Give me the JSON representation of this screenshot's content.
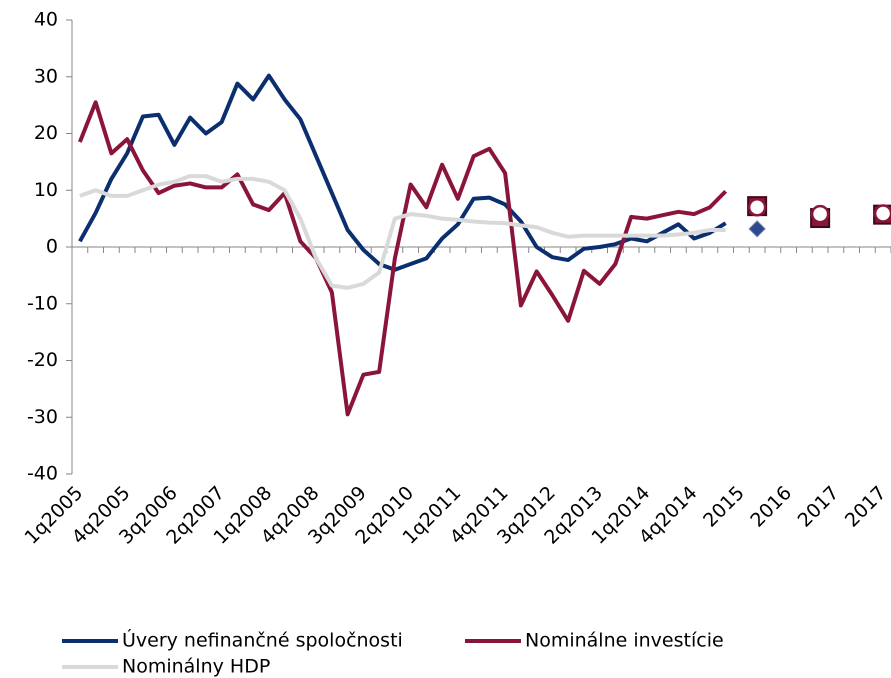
{
  "chart_data": {
    "type": "line",
    "categories": [
      "1q2005",
      null,
      null,
      "4q2005",
      null,
      null,
      "3q2006",
      null,
      null,
      "2q2007",
      null,
      null,
      "1q2008",
      null,
      null,
      "4q2008",
      null,
      null,
      "3q2009",
      null,
      null,
      "2q2010",
      null,
      null,
      "1q2011",
      null,
      null,
      "4q2011",
      null,
      null,
      "3q2012",
      null,
      null,
      "2q2013",
      null,
      null,
      "1q2014",
      null,
      null,
      "4q2014",
      null,
      null,
      "2015",
      null,
      null,
      "2016",
      null,
      null,
      "2017",
      null,
      null,
      "2017"
    ],
    "series": [
      {
        "name": "Úvery nefinančné spoločnosti",
        "color": "#0b2f6e",
        "values": [
          1,
          6,
          12,
          16.5,
          23,
          23.3,
          18,
          22.8,
          20,
          22,
          28.8,
          26,
          30.2,
          26,
          22.5,
          16,
          9.5,
          3,
          -0.5,
          -3,
          -4,
          -3,
          -2,
          1.5,
          4,
          8.5,
          8.7,
          7.5,
          4.5,
          0,
          -1.8,
          -2.3,
          -0.3,
          0,
          0.5,
          1.5,
          1,
          2.5,
          4,
          1.5,
          2.5,
          4.2,
          null,
          null,
          null,
          null,
          null,
          null,
          null,
          null,
          null,
          null
        ]
      },
      {
        "name": "Nominálne investície",
        "color": "#8b1538",
        "values": [
          18.5,
          25.5,
          16.5,
          19,
          13.5,
          9.5,
          10.8,
          11.2,
          10.5,
          10.5,
          12.8,
          7.5,
          6.5,
          9.5,
          1,
          -2,
          -8,
          -29.5,
          -22.5,
          -22,
          -2,
          11,
          7,
          14.5,
          8.5,
          16,
          17.3,
          13,
          -10.3,
          -4.3,
          -8.5,
          -13,
          -4.2,
          -6.5,
          -3,
          5.3,
          5,
          5.6,
          6.2,
          5.8,
          7,
          9.8,
          null,
          null,
          null,
          null,
          null,
          null,
          null,
          null,
          null,
          null
        ]
      },
      {
        "name": "Nominálny HDP",
        "color": "#d9d9d9",
        "values": [
          9,
          10,
          9,
          9,
          10,
          11,
          11.5,
          12.5,
          12.5,
          11.5,
          12,
          12,
          11.5,
          10,
          5,
          -2,
          -6.8,
          -7.2,
          -6.5,
          -4.5,
          5,
          5.8,
          5.5,
          5,
          4.8,
          4.5,
          4.3,
          4.2,
          3.8,
          3.5,
          2.5,
          1.8,
          2,
          2,
          2,
          2,
          2,
          2,
          2.2,
          2.5,
          3,
          3,
          null,
          null,
          null,
          null,
          null,
          null,
          null,
          null,
          null,
          null
        ]
      },
      {
        "marker": "diamond",
        "color": "#2e4a8c",
        "values": [
          null,
          null,
          null,
          null,
          null,
          null,
          null,
          null,
          null,
          null,
          null,
          null,
          null,
          null,
          null,
          null,
          null,
          null,
          null,
          null,
          null,
          null,
          null,
          null,
          null,
          null,
          null,
          null,
          null,
          null,
          null,
          null,
          null,
          null,
          null,
          null,
          null,
          null,
          null,
          null,
          null,
          null,
          null,
          3.2,
          null,
          null,
          null,
          5.2,
          null,
          null,
          null,
          5.8
        ]
      },
      {
        "marker": "square",
        "color": "#8b1538",
        "values": [
          null,
          null,
          null,
          null,
          null,
          null,
          null,
          null,
          null,
          null,
          null,
          null,
          null,
          null,
          null,
          null,
          null,
          null,
          null,
          null,
          null,
          null,
          null,
          null,
          null,
          null,
          null,
          null,
          null,
          null,
          null,
          null,
          null,
          null,
          null,
          null,
          null,
          null,
          null,
          null,
          null,
          null,
          null,
          7.2,
          null,
          null,
          null,
          5.1,
          null,
          null,
          null,
          5.7
        ]
      },
      {
        "marker": "circle",
        "color": "#8b1538",
        "values": [
          null,
          null,
          null,
          null,
          null,
          null,
          null,
          null,
          null,
          null,
          null,
          null,
          null,
          null,
          null,
          null,
          null,
          null,
          null,
          null,
          null,
          null,
          null,
          null,
          null,
          null,
          null,
          null,
          null,
          null,
          null,
          null,
          null,
          null,
          null,
          null,
          null,
          null,
          null,
          null,
          null,
          null,
          null,
          7,
          null,
          null,
          null,
          5.8,
          null,
          null,
          null,
          5.9
        ]
      }
    ],
    "ylim": [
      -40,
      40
    ],
    "yticks": [
      -40,
      -30,
      -20,
      -10,
      0,
      10,
      20,
      30,
      40
    ],
    "grid": false
  }
}
